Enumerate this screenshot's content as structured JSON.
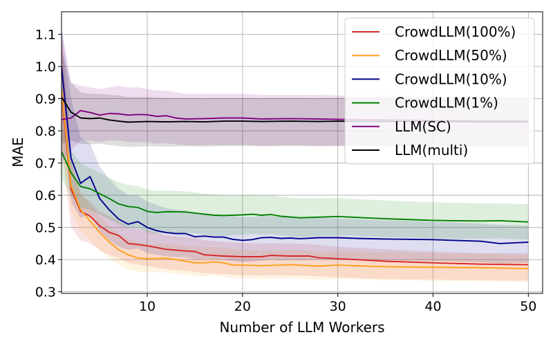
{
  "chart_data": {
    "type": "line",
    "title": "",
    "xlabel": "Number of LLM Workers",
    "ylabel": "MAE",
    "xlim": [
      1,
      51.5
    ],
    "ylim": [
      0.295,
      1.17
    ],
    "xticks": [
      10,
      20,
      30,
      40,
      50
    ],
    "yticks": [
      0.3,
      0.4,
      0.5,
      0.6,
      0.7,
      0.8,
      0.9,
      1.0,
      1.1
    ],
    "ytick_labels": [
      "0.3",
      "0.4",
      "0.5",
      "0.6",
      "0.7",
      "0.8",
      "0.9",
      "1.0",
      "1.1"
    ],
    "grid": true,
    "legend_position": "top-right",
    "series": [
      {
        "name": "CrowdLLM(100%)",
        "color": "#d62728",
        "x": [
          1,
          2,
          3,
          4,
          5,
          6,
          7,
          8,
          9,
          10,
          12,
          14,
          15,
          16,
          18,
          20,
          22,
          23,
          25,
          27,
          28,
          30,
          32,
          35,
          40,
          45,
          50
        ],
        "y": [
          0.92,
          0.62,
          0.55,
          0.535,
          0.505,
          0.485,
          0.475,
          0.45,
          0.447,
          0.443,
          0.432,
          0.427,
          0.425,
          0.415,
          0.411,
          0.409,
          0.409,
          0.413,
          0.411,
          0.411,
          0.406,
          0.403,
          0.4,
          0.395,
          0.39,
          0.386,
          0.384
        ],
        "band_upper": [
          1.12,
          0.72,
          0.6,
          0.58,
          0.55,
          0.535,
          0.52,
          0.5,
          0.495,
          0.49,
          0.475,
          0.47,
          0.468,
          0.46,
          0.455,
          0.452,
          0.45,
          0.452,
          0.45,
          0.448,
          0.445,
          0.44,
          0.437,
          0.432,
          0.425,
          0.42,
          0.42
        ],
        "band_lower": [
          0.75,
          0.5,
          0.46,
          0.45,
          0.43,
          0.415,
          0.405,
          0.39,
          0.385,
          0.38,
          0.37,
          0.365,
          0.362,
          0.358,
          0.355,
          0.352,
          0.35,
          0.352,
          0.35,
          0.35,
          0.348,
          0.345,
          0.343,
          0.34,
          0.338,
          0.336,
          0.335
        ]
      },
      {
        "name": "CrowdLLM(50%)",
        "color": "#ff9f1c",
        "x": [
          1,
          2,
          3,
          4,
          5,
          6,
          7,
          8,
          9,
          10,
          12,
          13,
          14,
          15,
          16,
          17,
          18,
          19,
          20,
          22,
          25,
          28,
          30,
          35,
          40,
          45,
          50
        ],
        "y": [
          0.93,
          0.63,
          0.555,
          0.52,
          0.485,
          0.455,
          0.43,
          0.415,
          0.405,
          0.403,
          0.404,
          0.4,
          0.395,
          0.39,
          0.39,
          0.393,
          0.39,
          0.383,
          0.383,
          0.381,
          0.384,
          0.38,
          0.383,
          0.378,
          0.376,
          0.375,
          0.372
        ],
        "band_upper": [
          1.1,
          0.7,
          0.61,
          0.57,
          0.535,
          0.505,
          0.48,
          0.465,
          0.455,
          0.45,
          0.45,
          0.447,
          0.442,
          0.44,
          0.438,
          0.44,
          0.437,
          0.432,
          0.43,
          0.428,
          0.43,
          0.425,
          0.427,
          0.422,
          0.42,
          0.418,
          0.415
        ],
        "band_lower": [
          0.78,
          0.55,
          0.49,
          0.46,
          0.43,
          0.405,
          0.385,
          0.37,
          0.362,
          0.36,
          0.36,
          0.357,
          0.352,
          0.35,
          0.348,
          0.35,
          0.347,
          0.342,
          0.342,
          0.34,
          0.342,
          0.338,
          0.34,
          0.336,
          0.334,
          0.333,
          0.33
        ]
      },
      {
        "name": "CrowdLLM(10%)",
        "color": "#00008b",
        "x": [
          1,
          2,
          3,
          4,
          5,
          6,
          7,
          8,
          9,
          10,
          11,
          12,
          13,
          14,
          15,
          16,
          17,
          18,
          19,
          20,
          21,
          22,
          23,
          24,
          25,
          26,
          28,
          30,
          32,
          35,
          38,
          40,
          42,
          45,
          47,
          50
        ],
        "y": [
          1.0,
          0.715,
          0.637,
          0.658,
          0.59,
          0.555,
          0.526,
          0.51,
          0.518,
          0.5,
          0.49,
          0.484,
          0.481,
          0.481,
          0.471,
          0.473,
          0.47,
          0.47,
          0.463,
          0.46,
          0.462,
          0.468,
          0.469,
          0.466,
          0.467,
          0.465,
          0.468,
          0.468,
          0.466,
          0.464,
          0.463,
          0.462,
          0.46,
          0.457,
          0.45,
          0.454
        ],
        "band_upper": [
          1.12,
          0.9,
          0.78,
          0.76,
          0.69,
          0.65,
          0.62,
          0.6,
          0.6,
          0.58,
          0.57,
          0.56,
          0.555,
          0.552,
          0.545,
          0.545,
          0.54,
          0.54,
          0.535,
          0.532,
          0.532,
          0.536,
          0.535,
          0.533,
          0.533,
          0.531,
          0.53,
          0.528,
          0.526,
          0.522,
          0.52,
          0.518,
          0.516,
          0.512,
          0.508,
          0.506
        ],
        "band_lower": [
          0.88,
          0.58,
          0.53,
          0.54,
          0.49,
          0.46,
          0.44,
          0.43,
          0.435,
          0.42,
          0.415,
          0.41,
          0.408,
          0.407,
          0.4,
          0.402,
          0.4,
          0.4,
          0.395,
          0.392,
          0.393,
          0.398,
          0.4,
          0.398,
          0.399,
          0.398,
          0.4,
          0.4,
          0.399,
          0.398,
          0.397,
          0.396,
          0.395,
          0.392,
          0.388,
          0.39
        ]
      },
      {
        "name": "CrowdLLM(1%)",
        "color": "#008000",
        "x": [
          1,
          2,
          3,
          4,
          5,
          6,
          7,
          8,
          9,
          10,
          11,
          12,
          14,
          16,
          17,
          18,
          20,
          21,
          22,
          23,
          24,
          26,
          28,
          30,
          32,
          35,
          38,
          40,
          42,
          45,
          47,
          50
        ],
        "y": [
          0.735,
          0.67,
          0.627,
          0.62,
          0.605,
          0.59,
          0.573,
          0.565,
          0.562,
          0.55,
          0.546,
          0.549,
          0.548,
          0.541,
          0.538,
          0.537,
          0.539,
          0.541,
          0.538,
          0.54,
          0.535,
          0.53,
          0.532,
          0.534,
          0.531,
          0.527,
          0.524,
          0.522,
          0.521,
          0.52,
          0.521,
          0.517
        ],
        "band_upper": [
          0.82,
          0.74,
          0.7,
          0.685,
          0.67,
          0.655,
          0.64,
          0.632,
          0.628,
          0.618,
          0.614,
          0.615,
          0.612,
          0.605,
          0.602,
          0.6,
          0.6,
          0.602,
          0.599,
          0.6,
          0.595,
          0.59,
          0.59,
          0.591,
          0.588,
          0.584,
          0.58,
          0.578,
          0.577,
          0.575,
          0.575,
          0.572
        ],
        "band_lower": [
          0.65,
          0.6,
          0.56,
          0.555,
          0.54,
          0.525,
          0.51,
          0.5,
          0.497,
          0.485,
          0.48,
          0.483,
          0.484,
          0.478,
          0.475,
          0.474,
          0.477,
          0.48,
          0.477,
          0.479,
          0.475,
          0.47,
          0.473,
          0.476,
          0.474,
          0.47,
          0.468,
          0.466,
          0.465,
          0.465,
          0.466,
          0.462
        ]
      },
      {
        "name": "LLM(SC)",
        "color": "#800080",
        "x": [
          1,
          2,
          3,
          4,
          5,
          6,
          7,
          8,
          9,
          10,
          11,
          12,
          13,
          14,
          16,
          18,
          20,
          22,
          25,
          28,
          30,
          35,
          40,
          45,
          50
        ],
        "y": [
          0.835,
          0.84,
          0.863,
          0.857,
          0.849,
          0.854,
          0.853,
          0.849,
          0.851,
          0.85,
          0.845,
          0.847,
          0.84,
          0.837,
          0.838,
          0.84,
          0.84,
          0.837,
          0.838,
          0.837,
          0.836,
          0.834,
          0.832,
          0.831,
          0.83
        ],
        "band_upper": [
          1.12,
          0.95,
          0.94,
          0.935,
          0.93,
          0.935,
          0.94,
          0.935,
          0.935,
          0.93,
          0.925,
          0.925,
          0.92,
          0.915,
          0.915,
          0.915,
          0.915,
          0.912,
          0.912,
          0.912,
          0.91,
          0.91,
          0.908,
          0.907,
          0.905
        ],
        "band_lower": [
          0.7,
          0.74,
          0.77,
          0.77,
          0.765,
          0.77,
          0.77,
          0.765,
          0.765,
          0.765,
          0.76,
          0.762,
          0.758,
          0.755,
          0.755,
          0.756,
          0.756,
          0.754,
          0.755,
          0.754,
          0.754,
          0.753,
          0.752,
          0.752,
          0.75
        ]
      },
      {
        "name": "LLM(multi)",
        "color": "#000000",
        "x": [
          1,
          2,
          3,
          4,
          5,
          6,
          7,
          8,
          9,
          10,
          12,
          14,
          16,
          18,
          20,
          22,
          25,
          28,
          30,
          35,
          40,
          45,
          50
        ],
        "y": [
          0.905,
          0.858,
          0.84,
          0.838,
          0.84,
          0.834,
          0.83,
          0.827,
          0.828,
          0.829,
          0.828,
          0.829,
          0.828,
          0.83,
          0.83,
          0.829,
          0.83,
          0.829,
          0.83,
          0.829,
          0.829,
          0.828,
          0.828
        ],
        "band_upper": [
          1.05,
          0.95,
          0.92,
          0.915,
          0.915,
          0.912,
          0.91,
          0.905,
          0.905,
          0.905,
          0.903,
          0.903,
          0.902,
          0.903,
          0.903,
          0.902,
          0.903,
          0.902,
          0.903,
          0.902,
          0.902,
          0.901,
          0.9
        ],
        "band_lower": [
          0.76,
          0.77,
          0.76,
          0.758,
          0.76,
          0.756,
          0.753,
          0.75,
          0.751,
          0.752,
          0.751,
          0.752,
          0.751,
          0.753,
          0.753,
          0.752,
          0.753,
          0.752,
          0.753,
          0.752,
          0.752,
          0.751,
          0.75
        ]
      }
    ]
  }
}
